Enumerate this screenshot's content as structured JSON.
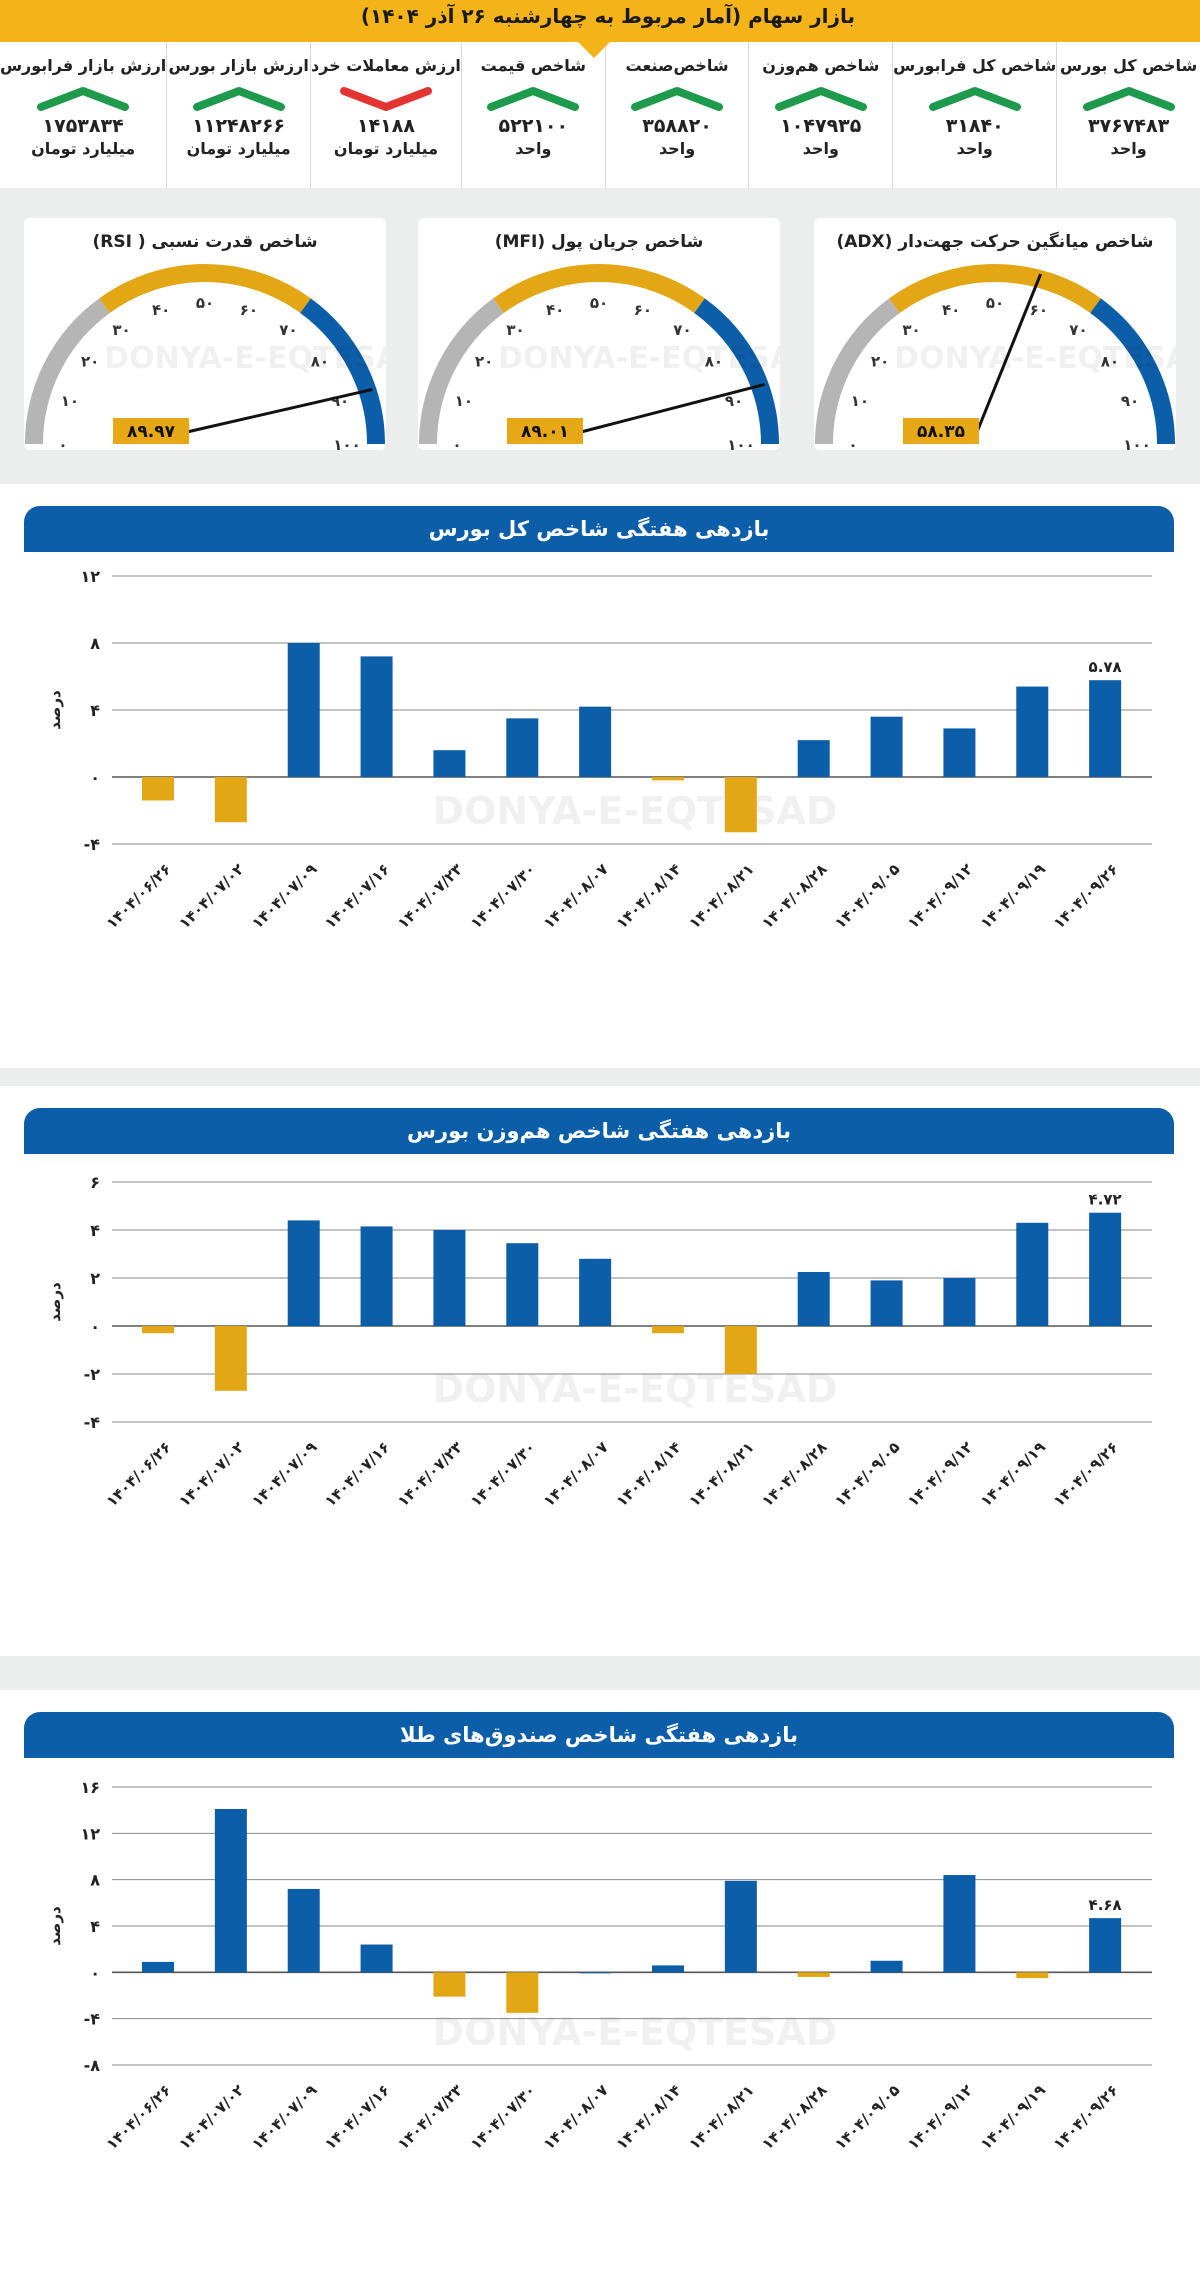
{
  "header": {
    "title": "بازار سهام (آمار مربوط به چهارشنبه ۲۶ آذر ۱۴۰۴)"
  },
  "colors": {
    "up": "#1e9a4d",
    "down": "#e23431",
    "blue": "#0c5ea8",
    "gold": "#e3a715",
    "gray": "#b5b5b5"
  },
  "stats": [
    {
      "label": "شاخص کل بورس",
      "value": "۳۷۶۷۴۸۳",
      "unit": "واحد",
      "trend": "up"
    },
    {
      "label": "شاخص کل فرابورس",
      "value": "۳۱۸۴۰",
      "unit": "واحد",
      "trend": "up"
    },
    {
      "label": "شاخص هم‌وزن",
      "value": "۱۰۴۷۹۳۵",
      "unit": "واحد",
      "trend": "up"
    },
    {
      "label": "شاخص‌صنعت",
      "value": "۳۵۸۸۲۰",
      "unit": "واحد",
      "trend": "up"
    },
    {
      "label": "شاخص قیمت",
      "value": "۵۲۲۱۰۰",
      "unit": "واحد",
      "trend": "up"
    },
    {
      "label": "ارزش معاملات خرد",
      "value": "۱۴۱۸۸",
      "unit": "میلیارد تومان",
      "trend": "down"
    },
    {
      "label": "ارزش بازار بورس",
      "value": "۱۱۲۴۸۲۶۶",
      "unit": "میلیارد تومان",
      "trend": "up"
    },
    {
      "label": "ارزش بازار فرابورس",
      "value": "۱۷۵۳۸۳۴",
      "unit": "میلیارد تومان",
      "trend": "up"
    }
  ],
  "gauges": [
    {
      "title": "شاخص قدرت نسبی ( RSI)",
      "value": 89.97,
      "value_label": "۸۹.۹۷",
      "ticks": [
        "۰",
        "۱۰",
        "۲۰",
        "۳۰",
        "۴۰",
        "۵۰",
        "۶۰",
        "۷۰",
        "۸۰",
        "۹۰",
        "۱۰۰"
      ]
    },
    {
      "title": "شاخص جریان پول (MFI)",
      "value": 89.01,
      "value_label": "۸۹.۰۱",
      "ticks": [
        "۰",
        "۱۰",
        "۲۰",
        "۳۰",
        "۴۰",
        "۵۰",
        "۶۰",
        "۷۰",
        "۸۰",
        "۹۰",
        "۱۰۰"
      ]
    },
    {
      "title": "شاخص میانگین حرکت جهت‌دار (ADX)",
      "value": 58.35,
      "value_label": "۵۸.۳۵",
      "ticks": [
        "۰",
        "۱۰",
        "۲۰",
        "۳۰",
        "۴۰",
        "۵۰",
        "۶۰",
        "۷۰",
        "۸۰",
        "۹۰",
        "۱۰۰"
      ]
    }
  ],
  "watermark": {
    "text": "DONYA-E-EQTESAD"
  },
  "chart_data": [
    {
      "type": "bar",
      "title": "بازدهی هفتگی شاخص کل بورس",
      "ylabel": "درصد",
      "ylim": [
        -4,
        12
      ],
      "yticks": [
        -4,
        0,
        4,
        8,
        12
      ],
      "ytick_labels": [
        "-۴",
        "۰",
        "۴",
        "۸",
        "۱۲"
      ],
      "categories": [
        "۱۴۰۴/۰۶/۲۶",
        "۱۴۰۴/۰۷/۰۲",
        "۱۴۰۴/۰۷/۰۹",
        "۱۴۰۴/۰۷/۱۶",
        "۱۴۰۴/۰۷/۲۳",
        "۱۴۰۴/۰۷/۳۰",
        "۱۴۰۴/۰۸/۰۷",
        "۱۴۰۴/۰۸/۱۴",
        "۱۴۰۴/۰۸/۲۱",
        "۱۴۰۴/۰۸/۲۸",
        "۱۴۰۴/۰۹/۰۵",
        "۱۴۰۴/۰۹/۱۲",
        "۱۴۰۴/۰۹/۱۹",
        "۱۴۰۴/۰۹/۲۶"
      ],
      "values": [
        -1.4,
        -2.7,
        8.0,
        7.2,
        1.6,
        3.5,
        4.2,
        -0.2,
        -3.3,
        2.2,
        3.6,
        2.9,
        5.4,
        5.78
      ],
      "last_label": "۵.۷۸"
    },
    {
      "type": "bar",
      "title": "بازدهی هفتگی شاخص هم‌وزن بورس",
      "ylabel": "درصد",
      "ylim": [
        -4,
        6
      ],
      "yticks": [
        -4,
        -2,
        0,
        2,
        4,
        6
      ],
      "ytick_labels": [
        "-۴",
        "-۲",
        "۰",
        "۲",
        "۴",
        "۶"
      ],
      "categories": [
        "۱۴۰۴/۰۶/۲۶",
        "۱۴۰۴/۰۷/۰۲",
        "۱۴۰۴/۰۷/۰۹",
        "۱۴۰۴/۰۷/۱۶",
        "۱۴۰۴/۰۷/۲۳",
        "۱۴۰۴/۰۷/۳۰",
        "۱۴۰۴/۰۸/۰۷",
        "۱۴۰۴/۰۸/۱۴",
        "۱۴۰۴/۰۸/۲۱",
        "۱۴۰۴/۰۸/۲۸",
        "۱۴۰۴/۰۹/۰۵",
        "۱۴۰۴/۰۹/۱۲",
        "۱۴۰۴/۰۹/۱۹",
        "۱۴۰۴/۰۹/۲۶"
      ],
      "values": [
        -0.3,
        -2.7,
        4.4,
        4.15,
        4.0,
        3.45,
        2.8,
        -0.3,
        -2.0,
        2.25,
        1.9,
        2.0,
        4.3,
        4.72
      ],
      "last_label": "۴.۷۲"
    },
    {
      "type": "bar",
      "title": "بازدهی هفتگی شاخص صندوق‌های طلا",
      "ylabel": "درصد",
      "ylim": [
        -8,
        16
      ],
      "yticks": [
        -8,
        -4,
        0,
        4,
        8,
        12,
        16
      ],
      "ytick_labels": [
        "-۸",
        "-۴",
        "۰",
        "۴",
        "۸",
        "۱۲",
        "۱۶"
      ],
      "categories": [
        "۱۴۰۴/۰۶/۲۶",
        "۱۴۰۴/۰۷/۰۲",
        "۱۴۰۴/۰۷/۰۹",
        "۱۴۰۴/۰۷/۱۶",
        "۱۴۰۴/۰۷/۲۳",
        "۱۴۰۴/۰۷/۳۰",
        "۱۴۰۴/۰۸/۰۷",
        "۱۴۰۴/۰۸/۱۴",
        "۱۴۰۴/۰۸/۲۱",
        "۱۴۰۴/۰۸/۲۸",
        "۱۴۰۴/۰۹/۰۵",
        "۱۴۰۴/۰۹/۱۲",
        "۱۴۰۴/۰۹/۱۹",
        "۱۴۰۴/۰۹/۲۶"
      ],
      "values": [
        0.9,
        14.1,
        7.2,
        2.4,
        -2.1,
        -3.5,
        0.0,
        0.6,
        7.9,
        -0.4,
        1.0,
        8.4,
        -0.5,
        4.68
      ],
      "last_label": "۴.۶۸"
    }
  ]
}
